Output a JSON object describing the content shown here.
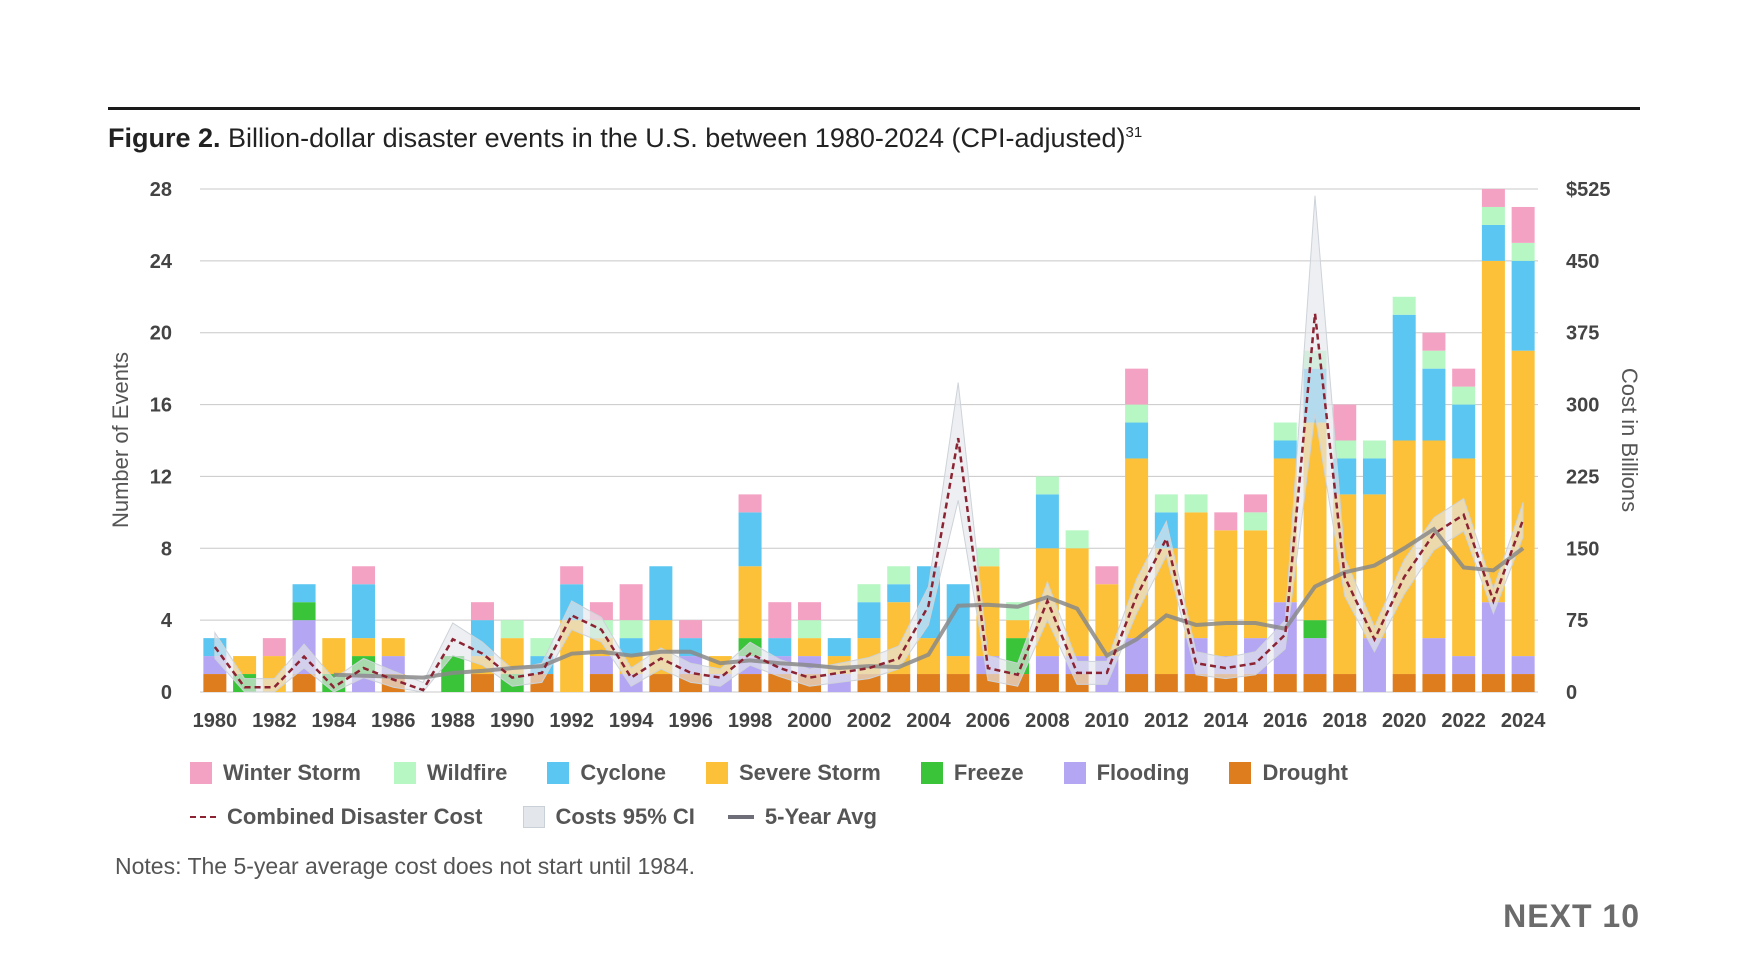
{
  "figure": {
    "label": "Figure 2.",
    "title": "Billion-dollar disaster events in the U.S. between 1980-2024 (CPI-adjusted)",
    "footnote": "31"
  },
  "notes": "Notes: The 5-year average cost does not start until 1984.",
  "brand": "NEXT 10",
  "legend": {
    "winter_storm": "Winter Storm",
    "wildfire": "Wildfire",
    "cyclone": "Cyclone",
    "severe_storm": "Severe Storm",
    "freeze": "Freeze",
    "flooding": "Flooding",
    "drought": "Drought",
    "combined_cost": "Combined Disaster Cost",
    "ci": "Costs 95% CI",
    "avg": "5-Year Avg"
  },
  "colors": {
    "drought": "#de7d1e",
    "flooding": "#b5a6f3",
    "freeze": "#3ac43a",
    "severe_storm": "#fcc138",
    "cyclone": "#5bc6f1",
    "wildfire": "#b6f7c3",
    "winter_storm": "#f4a2c3",
    "combined_cost": "#8b2333",
    "ci": "#e3e7eb",
    "avg": "#8a8a8a",
    "grid": "#c8c8c8"
  },
  "chart_data": {
    "type": "bar",
    "stacked": true,
    "x": [
      1980,
      1981,
      1982,
      1983,
      1984,
      1985,
      1986,
      1987,
      1988,
      1989,
      1990,
      1991,
      1992,
      1993,
      1994,
      1995,
      1996,
      1997,
      1998,
      1999,
      2000,
      2001,
      2002,
      2003,
      2004,
      2005,
      2006,
      2007,
      2008,
      2009,
      2010,
      2011,
      2012,
      2013,
      2014,
      2015,
      2016,
      2017,
      2018,
      2019,
      2020,
      2021,
      2022,
      2023,
      2024
    ],
    "x_tick_labels": [
      "1980",
      "1982",
      "1984",
      "1986",
      "1988",
      "1990",
      "1992",
      "1994",
      "1996",
      "1998",
      "2000",
      "2002",
      "2004",
      "2006",
      "2008",
      "2010",
      "2012",
      "2014",
      "2016",
      "2018",
      "2020",
      "2022",
      "2024"
    ],
    "ylabel_left": "Number of Events",
    "ylabel_right": "Cost in Billions",
    "ylim_left": [
      0,
      28
    ],
    "left_ticks": [
      "0",
      "4",
      "8",
      "12",
      "16",
      "20",
      "24",
      "28"
    ],
    "ylim_right": [
      0,
      525
    ],
    "right_ticks": [
      "0",
      "75",
      "150",
      "225",
      "300",
      "375",
      "450",
      "$525"
    ],
    "grid": true,
    "legend_position": "bottom",
    "series": [
      {
        "name": "Drought",
        "key": "drought",
        "values": [
          1,
          0,
          0,
          1,
          0,
          0,
          1,
          0,
          0,
          1,
          0,
          1,
          0,
          1,
          0,
          1,
          1,
          0,
          1,
          1,
          1,
          0,
          1,
          1,
          1,
          1,
          1,
          1,
          1,
          1,
          0,
          1,
          1,
          1,
          1,
          1,
          1,
          1,
          1,
          0,
          1,
          1,
          1,
          1,
          1
        ]
      },
      {
        "name": "Flooding",
        "key": "flooding",
        "values": [
          1,
          0,
          0,
          3,
          0,
          1,
          1,
          0,
          0,
          0,
          0,
          0,
          0,
          1,
          1,
          0,
          1,
          1,
          1,
          1,
          1,
          1,
          0,
          0,
          0,
          0,
          1,
          0,
          1,
          1,
          2,
          2,
          0,
          2,
          1,
          2,
          4,
          2,
          0,
          3,
          0,
          2,
          1,
          4,
          1
        ]
      },
      {
        "name": "Freeze",
        "key": "freeze",
        "values": [
          0,
          1,
          0,
          1,
          1,
          1,
          0,
          0,
          2,
          0,
          1,
          0,
          0,
          0,
          0,
          0,
          0,
          0,
          1,
          0,
          0,
          0,
          0,
          0,
          0,
          0,
          0,
          2,
          0,
          0,
          0,
          0,
          0,
          0,
          0,
          0,
          0,
          1,
          0,
          0,
          0,
          0,
          0,
          0,
          0
        ]
      },
      {
        "name": "Severe Storm",
        "key": "severe_storm",
        "values": [
          0,
          1,
          2,
          0,
          2,
          1,
          1,
          0,
          0,
          1,
          2,
          0,
          4,
          1,
          1,
          3,
          0,
          1,
          4,
          0,
          1,
          1,
          2,
          4,
          2,
          1,
          5,
          1,
          6,
          6,
          4,
          10,
          7,
          7,
          7,
          6,
          8,
          11,
          10,
          8,
          13,
          11,
          11,
          19,
          17
        ]
      },
      {
        "name": "Cyclone",
        "key": "cyclone",
        "values": [
          1,
          0,
          0,
          1,
          0,
          3,
          0,
          0,
          0,
          2,
          0,
          1,
          2,
          0,
          1,
          3,
          1,
          0,
          3,
          1,
          0,
          1,
          2,
          1,
          4,
          4,
          0,
          0,
          3,
          0,
          0,
          2,
          2,
          0,
          0,
          0,
          1,
          3,
          2,
          2,
          7,
          4,
          3,
          2,
          5
        ]
      },
      {
        "name": "Wildfire",
        "key": "wildfire",
        "values": [
          0,
          0,
          0,
          0,
          0,
          0,
          0,
          0,
          0,
          0,
          1,
          1,
          0,
          1,
          1,
          0,
          0,
          0,
          0,
          0,
          1,
          0,
          1,
          1,
          0,
          0,
          1,
          1,
          1,
          1,
          0,
          1,
          1,
          1,
          0,
          1,
          1,
          1,
          1,
          1,
          1,
          1,
          1,
          1,
          1
        ]
      },
      {
        "name": "Winter Storm",
        "key": "winter_storm",
        "values": [
          0,
          0,
          1,
          0,
          0,
          1,
          0,
          0,
          0,
          1,
          0,
          0,
          1,
          1,
          2,
          0,
          1,
          0,
          1,
          2,
          1,
          0,
          0,
          0,
          0,
          0,
          0,
          0,
          0,
          0,
          1,
          2,
          0,
          0,
          1,
          1,
          0,
          0,
          2,
          0,
          0,
          1,
          1,
          1,
          2
        ]
      }
    ],
    "lines": [
      {
        "name": "Combined Disaster Cost",
        "key": "combined_cost",
        "axis": "right",
        "style": "dashed",
        "values": [
          47,
          5,
          5,
          37,
          5,
          25,
          13,
          2,
          55,
          40,
          15,
          20,
          80,
          65,
          15,
          35,
          20,
          15,
          40,
          25,
          15,
          20,
          25,
          35,
          90,
          265,
          25,
          18,
          95,
          20,
          20,
          100,
          160,
          30,
          25,
          30,
          60,
          395,
          120,
          55,
          120,
          165,
          185,
          95,
          180
        ]
      },
      {
        "name": "Costs 95% CI",
        "key": "ci",
        "axis": "right",
        "style": "band",
        "upper": [
          62,
          14,
          14,
          50,
          14,
          35,
          22,
          10,
          72,
          52,
          24,
          30,
          95,
          78,
          25,
          46,
          30,
          24,
          52,
          34,
          24,
          30,
          36,
          48,
          110,
          323,
          38,
          30,
          115,
          32,
          32,
          118,
          178,
          42,
          36,
          42,
          75,
          518,
          140,
          68,
          138,
          182,
          202,
          108,
          198
        ],
        "lower": [
          35,
          0,
          0,
          25,
          0,
          15,
          5,
          0,
          38,
          28,
          6,
          10,
          65,
          52,
          6,
          24,
          10,
          6,
          28,
          16,
          6,
          10,
          14,
          24,
          70,
          200,
          12,
          6,
          75,
          8,
          8,
          82,
          142,
          18,
          14,
          18,
          45,
          290,
          100,
          42,
          102,
          148,
          168,
          82,
          162
        ]
      },
      {
        "name": "5-Year Avg",
        "key": "avg",
        "axis": "right",
        "style": "solid",
        "start_year": 1984,
        "values": [
          null,
          null,
          null,
          null,
          18,
          17,
          16,
          15,
          20,
          22,
          25,
          27,
          40,
          42,
          38,
          42,
          42,
          30,
          33,
          30,
          28,
          25,
          27,
          26,
          39,
          90,
          91,
          89,
          99,
          87,
          38,
          55,
          80,
          70,
          72,
          72,
          66,
          110,
          125,
          132,
          150,
          170,
          130,
          127,
          150
        ]
      }
    ]
  }
}
